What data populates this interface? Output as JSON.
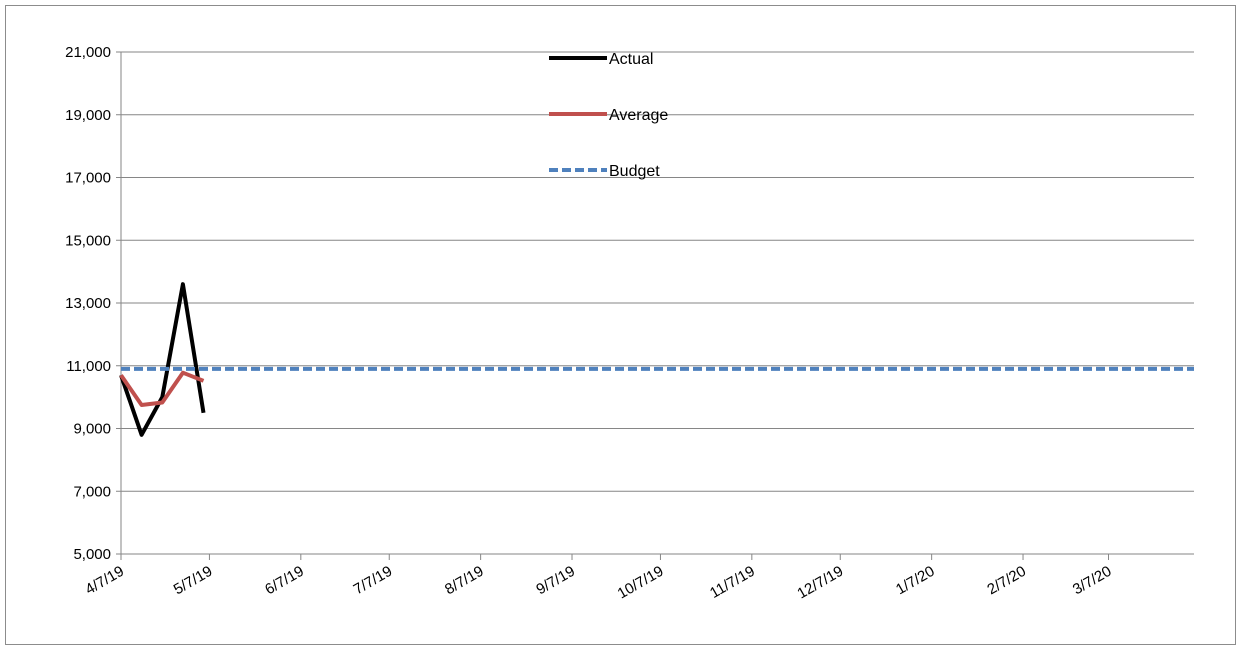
{
  "chart_data": {
    "type": "line",
    "title": "",
    "xlabel": "",
    "ylabel": "",
    "ylim": [
      5000,
      21000
    ],
    "yticks": [
      "5,000",
      "7,000",
      "9,000",
      "11,000",
      "13,000",
      "15,000",
      "17,000",
      "19,000",
      "21,000"
    ],
    "ytick_values": [
      5000,
      7000,
      9000,
      11000,
      13000,
      15000,
      17000,
      19000,
      21000
    ],
    "xlim": [
      "2019-04-07",
      "2020-04-05"
    ],
    "xticks": [
      "4/7/19",
      "5/7/19",
      "6/7/19",
      "7/7/19",
      "8/7/19",
      "9/7/19",
      "10/7/19",
      "11/7/19",
      "12/7/19",
      "1/7/20",
      "2/7/20",
      "3/7/20"
    ],
    "xtick_dates": [
      "2019-04-07",
      "2019-05-07",
      "2019-06-07",
      "2019-07-07",
      "2019-08-07",
      "2019-09-07",
      "2019-10-07",
      "2019-11-07",
      "2019-12-07",
      "2020-01-07",
      "2020-02-07",
      "2020-03-07"
    ],
    "grid": "horizontal",
    "legend_position": "top-center",
    "series": [
      {
        "name": "Actual",
        "color": "#000000",
        "style": "solid",
        "x": [
          "2019-04-07",
          "2019-04-14",
          "2019-04-21",
          "2019-04-28",
          "2019-05-05"
        ],
        "y": [
          10700,
          8800,
          10000,
          13600,
          9500
        ]
      },
      {
        "name": "Average",
        "color": "#c0504d",
        "style": "solid",
        "x": [
          "2019-04-07",
          "2019-04-14",
          "2019-04-21",
          "2019-04-28",
          "2019-05-05"
        ],
        "y": [
          10700,
          9750,
          9830,
          10780,
          10520
        ]
      },
      {
        "name": "Budget",
        "color": "#4f81bd",
        "style": "dashed",
        "x": [
          "2019-04-07",
          "2020-04-05"
        ],
        "y": [
          10900,
          10900
        ]
      }
    ]
  }
}
